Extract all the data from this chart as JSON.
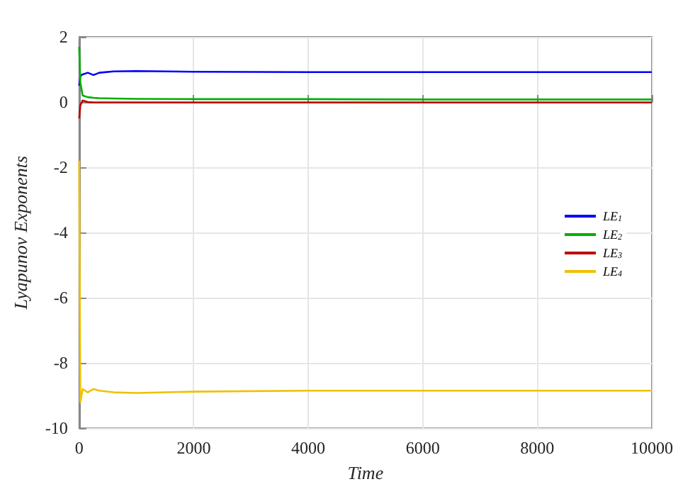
{
  "chart_data": {
    "type": "line",
    "xlabel": "Time",
    "ylabel": "Lyapunov Exponents",
    "xlim": [
      0,
      10000
    ],
    "xticks": [
      0,
      2000,
      4000,
      6000,
      8000,
      10000
    ],
    "ylim": [
      -10,
      2
    ],
    "yticks": [
      -10,
      -8,
      -6,
      -4,
      -2,
      0,
      2
    ],
    "grid": true,
    "legend": "right",
    "marker": "none",
    "line_style": "solid",
    "x": [
      0,
      20,
      60,
      150,
      250,
      350,
      600,
      1000,
      2000,
      4000,
      6000,
      8000,
      10000
    ],
    "series": [
      {
        "name": "LE$_{1}$",
        "color": "#0000ff",
        "values": [
          0.5,
          0.8,
          0.85,
          0.9,
          0.83,
          0.9,
          0.94,
          0.95,
          0.93,
          0.92,
          0.92,
          0.92,
          0.92
        ]
      },
      {
        "name": "LE$_{2}$",
        "color": "#00b000",
        "values": [
          1.7,
          0.6,
          0.2,
          0.15,
          0.13,
          0.12,
          0.11,
          0.1,
          0.09,
          0.09,
          0.08,
          0.08,
          0.08
        ]
      },
      {
        "name": "LE$_{3}$",
        "color": "#c00000",
        "values": [
          -0.5,
          -0.1,
          0.05,
          0.0,
          -0.01,
          -0.01,
          -0.01,
          -0.01,
          -0.01,
          -0.01,
          -0.01,
          -0.01,
          -0.01
        ]
      },
      {
        "name": "LE$_{4}$",
        "color": "#f0c000",
        "values": [
          -1.8,
          -9.2,
          -8.8,
          -8.9,
          -8.8,
          -8.85,
          -8.9,
          -8.92,
          -8.88,
          -8.85,
          -8.85,
          -8.85,
          -8.85
        ]
      }
    ]
  }
}
